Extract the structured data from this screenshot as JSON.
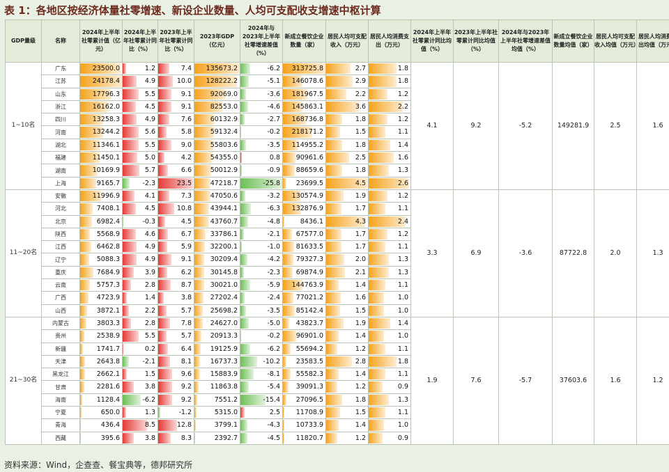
{
  "title": "表 1：各地区按经济体量社零增速、新设企业数量、人均可支配收支增速中枢计算",
  "source": "资料来源：Wind，企查查、餐宝典等，德邦研究所",
  "headers": [
    "GDP量级",
    "名称",
    "2024年上半年社零累计值（亿元）",
    "2024年上半年社零累计同比（%）",
    "2023年上半年社零累计同比（%）",
    "2023年GDP（亿元）",
    "2024年与2023年上半年社零增速差值（%）",
    "新成立餐饮企业数量（家）",
    "居民人均可支配收入（万元）",
    "居民人均消费支出（万元）",
    "2024年上半年社零累计同比均值（%）",
    "2023年上半年社零累计同比均值（%）",
    "2024年与2023年上半年社零增速差值均值（%）",
    "新成立餐饮企业数量均值（家）",
    "居民人均可支配收入均值（万元）",
    "居民人均消费支出均值（万元）"
  ],
  "groups": [
    {
      "label": "1~10名",
      "avg_retail_2024": "4.1",
      "avg_retail_2023": "9.2",
      "avg_diff": "-5.2",
      "avg_new_firms": "149281.9",
      "avg_income": "2.5",
      "avg_spend": "1.6",
      "rows": [
        {
          "name": "广东",
          "retail": "23500.0",
          "yoy24": "1.2",
          "yoy23": "7.4",
          "gdp": "135673.2",
          "diff": "-6.2",
          "firms": "313725.8",
          "income": "2.7",
          "spend": "1.8"
        },
        {
          "name": "江苏",
          "retail": "24178.4",
          "yoy24": "4.9",
          "yoy23": "10.0",
          "gdp": "128222.2",
          "diff": "-5.1",
          "firms": "146078.6",
          "income": "2.9",
          "spend": "1.8"
        },
        {
          "name": "山东",
          "retail": "17796.3",
          "yoy24": "5.5",
          "yoy23": "9.1",
          "gdp": "92069.0",
          "diff": "-3.6",
          "firms": "181967.5",
          "income": "2.2",
          "spend": "1.2"
        },
        {
          "name": "浙江",
          "retail": "16162.0",
          "yoy24": "4.5",
          "yoy23": "9.1",
          "gdp": "82553.0",
          "diff": "-4.6",
          "firms": "145863.1",
          "income": "3.6",
          "spend": "2.2"
        },
        {
          "name": "四川",
          "retail": "13258.3",
          "yoy24": "4.9",
          "yoy23": "7.6",
          "gdp": "60132.9",
          "diff": "-2.7",
          "firms": "168736.8",
          "income": "1.8",
          "spend": "1.2"
        },
        {
          "name": "河南",
          "retail": "13244.2",
          "yoy24": "5.6",
          "yoy23": "5.8",
          "gdp": "59132.4",
          "diff": "-0.2",
          "firms": "218171.2",
          "income": "1.5",
          "spend": "1.1"
        },
        {
          "name": "湖北",
          "retail": "11346.1",
          "yoy24": "5.5",
          "yoy23": "9.0",
          "gdp": "55803.6",
          "diff": "-3.5",
          "firms": "114955.2",
          "income": "1.8",
          "spend": "1.4"
        },
        {
          "name": "福建",
          "retail": "11450.1",
          "yoy24": "5.0",
          "yoy23": "4.2",
          "gdp": "54355.0",
          "diff": "0.8",
          "firms": "90961.6",
          "income": "2.5",
          "spend": "1.6"
        },
        {
          "name": "湖南",
          "retail": "10169.9",
          "yoy24": "5.7",
          "yoy23": "6.6",
          "gdp": "50012.9",
          "diff": "-0.9",
          "firms": "88659.6",
          "income": "1.8",
          "spend": "1.3"
        },
        {
          "name": "上海",
          "retail": "9165.7",
          "yoy24": "-2.3",
          "yoy23": "23.5",
          "gdp": "47218.7",
          "diff": "-25.8",
          "firms": "23699.5",
          "income": "4.5",
          "spend": "2.6"
        }
      ]
    },
    {
      "label": "11~20名",
      "avg_retail_2024": "3.3",
      "avg_retail_2023": "6.9",
      "avg_diff": "-3.6",
      "avg_new_firms": "87722.8",
      "avg_income": "2.0",
      "avg_spend": "1.3",
      "rows": [
        {
          "name": "安徽",
          "retail": "11996.9",
          "yoy24": "4.1",
          "yoy23": "7.3",
          "gdp": "47050.6",
          "diff": "-3.2",
          "firms": "130574.9",
          "income": "1.9",
          "spend": "1.2"
        },
        {
          "name": "河北",
          "retail": "7408.1",
          "yoy24": "4.5",
          "yoy23": "10.8",
          "gdp": "43944.1",
          "diff": "-6.3",
          "firms": "132876.9",
          "income": "1.7",
          "spend": "1.1"
        },
        {
          "name": "北京",
          "retail": "6982.4",
          "yoy24": "-0.3",
          "yoy23": "4.5",
          "gdp": "43760.7",
          "diff": "-4.8",
          "firms": "8436.1",
          "income": "4.3",
          "spend": "2.4"
        },
        {
          "name": "陕西",
          "retail": "5568.9",
          "yoy24": "4.6",
          "yoy23": "6.7",
          "gdp": "33786.1",
          "diff": "-2.1",
          "firms": "67577.0",
          "income": "1.7",
          "spend": "1.2"
        },
        {
          "name": "江西",
          "retail": "6462.8",
          "yoy24": "4.9",
          "yoy23": "5.9",
          "gdp": "32200.1",
          "diff": "-1.0",
          "firms": "81633.5",
          "income": "1.7",
          "spend": "1.1"
        },
        {
          "name": "辽宁",
          "retail": "5088.3",
          "yoy24": "4.9",
          "yoy23": "9.1",
          "gdp": "30209.4",
          "diff": "-4.2",
          "firms": "79327.3",
          "income": "2.0",
          "spend": "1.3"
        },
        {
          "name": "重庆",
          "retail": "7684.9",
          "yoy24": "3.9",
          "yoy23": "6.2",
          "gdp": "30145.8",
          "diff": "-2.3",
          "firms": "69874.9",
          "income": "2.1",
          "spend": "1.3"
        },
        {
          "name": "云南",
          "retail": "5757.3",
          "yoy24": "2.8",
          "yoy23": "8.7",
          "gdp": "30021.0",
          "diff": "-5.9",
          "firms": "144763.9",
          "income": "1.4",
          "spend": "1.1"
        },
        {
          "name": "广西",
          "retail": "4723.9",
          "yoy24": "1.4",
          "yoy23": "3.8",
          "gdp": "27202.4",
          "diff": "-2.4",
          "firms": "77021.2",
          "income": "1.6",
          "spend": "1.0"
        },
        {
          "name": "山西",
          "retail": "3872.1",
          "yoy24": "2.2",
          "yoy23": "5.7",
          "gdp": "25698.2",
          "diff": "-3.5",
          "firms": "85142.4",
          "income": "1.5",
          "spend": "1.0"
        }
      ]
    },
    {
      "label": "21~30名",
      "avg_retail_2024": "1.9",
      "avg_retail_2023": "7.6",
      "avg_diff": "-5.7",
      "avg_new_firms": "37603.6",
      "avg_income": "1.6",
      "avg_spend": "1.2",
      "rows": [
        {
          "name": "内蒙古",
          "retail": "3803.3",
          "yoy24": "2.8",
          "yoy23": "7.8",
          "gdp": "24627.0",
          "diff": "-5.0",
          "firms": "43823.7",
          "income": "1.9",
          "spend": "1.4"
        },
        {
          "name": "贵州",
          "retail": "2538.9",
          "yoy24": "5.5",
          "yoy23": "5.7",
          "gdp": "20913.3",
          "diff": "-0.2",
          "firms": "96901.0",
          "income": "1.4",
          "spend": "1.0"
        },
        {
          "name": "新疆",
          "retail": "1741.7",
          "yoy24": "0.2",
          "yoy23": "6.4",
          "gdp": "19125.9",
          "diff": "-6.2",
          "firms": "55694.2",
          "income": "1.2",
          "spend": "1.1"
        },
        {
          "name": "天津",
          "retail": "2643.8",
          "yoy24": "-2.1",
          "yoy23": "8.1",
          "gdp": "16737.3",
          "diff": "-10.2",
          "firms": "23583.5",
          "income": "2.8",
          "spend": "1.8"
        },
        {
          "name": "黑龙江",
          "retail": "2662.1",
          "yoy24": "1.5",
          "yoy23": "9.6",
          "gdp": "15883.9",
          "diff": "-8.1",
          "firms": "55582.3",
          "income": "1.4",
          "spend": "1.1"
        },
        {
          "name": "甘肃",
          "retail": "2281.6",
          "yoy24": "3.8",
          "yoy23": "9.2",
          "gdp": "11863.8",
          "diff": "-5.4",
          "firms": "39091.3",
          "income": "1.2",
          "spend": "0.9"
        },
        {
          "name": "海南",
          "retail": "1128.4",
          "yoy24": "-6.2",
          "yoy23": "9.2",
          "gdp": "7551.2",
          "diff": "-15.4",
          "firms": "27096.5",
          "income": "1.8",
          "spend": "1.3"
        },
        {
          "name": "宁夏",
          "retail": "650.0",
          "yoy24": "1.3",
          "yoy23": "-1.2",
          "gdp": "5315.0",
          "diff": "2.5",
          "firms": "11708.9",
          "income": "1.5",
          "spend": "1.1"
        },
        {
          "name": "青海",
          "retail": "436.4",
          "yoy24": "8.5",
          "yoy23": "12.8",
          "gdp": "3799.1",
          "diff": "-4.3",
          "firms": "10733.9",
          "income": "1.4",
          "spend": "1.0"
        },
        {
          "name": "西藏",
          "retail": "395.6",
          "yoy24": "3.8",
          "yoy23": "8.3",
          "gdp": "2392.7",
          "diff": "-4.5",
          "firms": "11820.7",
          "income": "1.2",
          "spend": "0.9"
        }
      ]
    }
  ],
  "bar_colors": {
    "retail": "#f3a21a",
    "yoy_pos": "#e53935",
    "yoy_neg": "#6cbf55",
    "gdp": "#f6a21c",
    "diff_pos": "#e53935",
    "diff_neg": "#6cbf55",
    "firms": "#f6a21c",
    "income": "#f6a21c",
    "spend": "#f6a21c"
  }
}
